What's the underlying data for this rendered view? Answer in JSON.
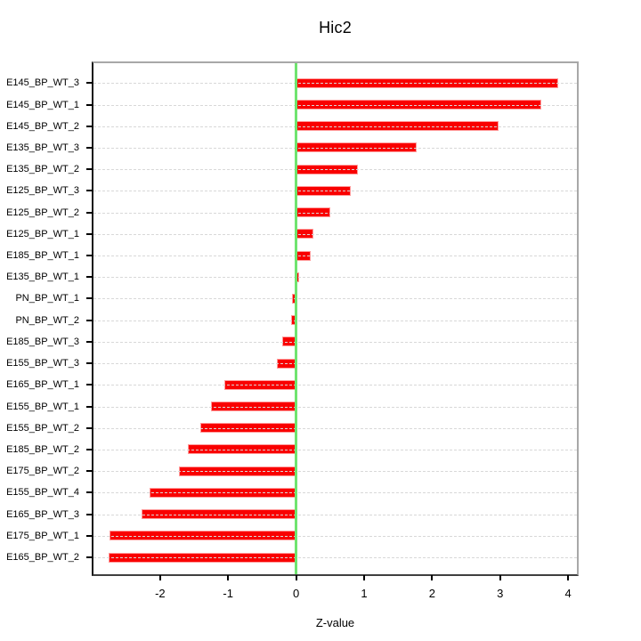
{
  "title": "Hic2",
  "x_axis": {
    "label": "Z-value",
    "ticks": [
      -2,
      -1,
      0,
      1,
      2,
      3,
      4
    ],
    "range": [
      -2.98,
      4.13
    ]
  },
  "chart_data": {
    "type": "bar",
    "orientation": "horizontal",
    "title": "Hic2",
    "xlabel": "Z-value",
    "ylabel": "",
    "xlim": [
      -2.98,
      4.13
    ],
    "xticks": [
      -2,
      -1,
      0,
      1,
      2,
      3,
      4
    ],
    "grid": true,
    "zero_reference_line": 0,
    "categories": [
      "E145_BP_WT_3",
      "E145_BP_WT_1",
      "E145_BP_WT_2",
      "E135_BP_WT_3",
      "E135_BP_WT_2",
      "E125_BP_WT_3",
      "E125_BP_WT_2",
      "E125_BP_WT_1",
      "E185_BP_WT_1",
      "E135_BP_WT_1",
      "PN_BP_WT_1",
      "PN_BP_WT_2",
      "E185_BP_WT_3",
      "E155_BP_WT_3",
      "E165_BP_WT_1",
      "E155_BP_WT_1",
      "E155_BP_WT_2",
      "E185_BP_WT_2",
      "E175_BP_WT_2",
      "E155_BP_WT_4",
      "E165_BP_WT_3",
      "E175_BP_WT_1",
      "E165_BP_WT_2"
    ],
    "values": [
      3.86,
      3.61,
      2.98,
      1.77,
      0.91,
      0.8,
      0.5,
      0.25,
      0.22,
      0.04,
      -0.06,
      -0.07,
      -0.21,
      -0.28,
      -1.06,
      -1.25,
      -1.41,
      -1.59,
      -1.72,
      -2.15,
      -2.27,
      -2.74,
      -2.76
    ],
    "colors": {
      "bar_fill": "#f90000",
      "bar_border": "#ff9a9a",
      "zero_line": "#6fe46f",
      "grid_line": "#d8d8d8",
      "box_border": "#a8a8a8",
      "axis": "#000000"
    }
  }
}
